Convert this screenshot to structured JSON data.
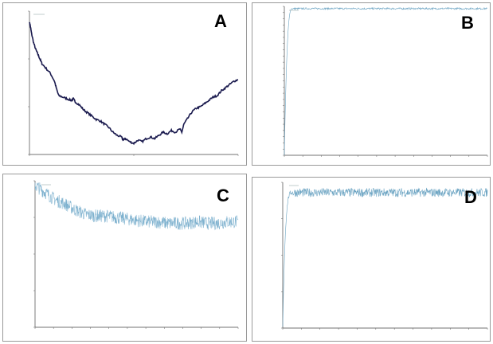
{
  "panels": [
    {
      "letter": "A"
    },
    {
      "letter": "B"
    },
    {
      "letter": "C"
    },
    {
      "letter": "D"
    }
  ],
  "chart_data": [
    {
      "type": "line",
      "title": "",
      "color": "#1a1a4e",
      "y_tick_labels": [
        "",
        "",
        ""
      ],
      "points": [
        [
          0,
          0.93
        ],
        [
          0.5,
          0.9
        ],
        [
          1,
          0.86
        ],
        [
          2,
          0.8
        ],
        [
          3,
          0.76
        ],
        [
          4,
          0.73
        ],
        [
          5,
          0.7
        ],
        [
          6,
          0.67
        ],
        [
          8,
          0.64
        ],
        [
          10,
          0.61
        ],
        [
          12,
          0.56
        ],
        [
          13,
          0.51
        ],
        [
          14,
          0.47
        ],
        [
          16,
          0.46
        ],
        [
          18,
          0.45
        ],
        [
          20,
          0.44
        ],
        [
          21,
          0.45
        ],
        [
          22,
          0.43
        ],
        [
          24,
          0.41
        ],
        [
          26,
          0.38
        ],
        [
          28,
          0.36
        ],
        [
          30,
          0.34
        ],
        [
          32,
          0.32
        ],
        [
          34,
          0.31
        ],
        [
          36,
          0.29
        ],
        [
          38,
          0.27
        ],
        [
          40,
          0.24
        ],
        [
          42,
          0.22
        ],
        [
          44,
          0.21
        ],
        [
          45,
          0.19
        ],
        [
          46,
          0.2
        ],
        [
          48,
          0.18
        ],
        [
          50,
          0.17
        ],
        [
          52,
          0.19
        ],
        [
          54,
          0.18
        ],
        [
          56,
          0.2
        ],
        [
          58,
          0.21
        ],
        [
          60,
          0.2
        ],
        [
          62,
          0.22
        ],
        [
          64,
          0.24
        ],
        [
          66,
          0.23
        ],
        [
          68,
          0.25
        ],
        [
          70,
          0.24
        ],
        [
          72,
          0.26
        ],
        [
          73,
          0.24
        ],
        [
          74,
          0.29
        ],
        [
          76,
          0.33
        ],
        [
          78,
          0.37
        ],
        [
          80,
          0.39
        ],
        [
          82,
          0.4
        ],
        [
          84,
          0.42
        ],
        [
          86,
          0.44
        ],
        [
          88,
          0.46
        ],
        [
          90,
          0.47
        ],
        [
          92,
          0.5
        ],
        [
          94,
          0.52
        ],
        [
          96,
          0.54
        ],
        [
          98,
          0.56
        ],
        [
          100,
          0.57
        ]
      ],
      "xlim": [
        0,
        100
      ],
      "ylim": [
        0.1,
        1.0
      ]
    },
    {
      "type": "line",
      "title": "",
      "color": "#6aa3c2",
      "ylim": [
        0,
        1
      ],
      "plateau": 0.985,
      "rise_end_x": 0.04
    },
    {
      "type": "line",
      "title": "",
      "color": "#7fb2cf",
      "ylim": [
        0,
        1
      ],
      "points": [
        [
          0,
          0.97
        ],
        [
          0.05,
          0.92
        ],
        [
          0.1,
          0.87
        ],
        [
          0.15,
          0.84
        ],
        [
          0.2,
          0.8
        ],
        [
          0.25,
          0.77
        ],
        [
          0.3,
          0.76
        ],
        [
          0.35,
          0.76
        ],
        [
          0.4,
          0.75
        ],
        [
          0.45,
          0.74
        ],
        [
          0.5,
          0.73
        ],
        [
          0.55,
          0.72
        ],
        [
          0.6,
          0.72
        ],
        [
          0.65,
          0.71
        ],
        [
          0.7,
          0.71
        ],
        [
          0.75,
          0.71
        ],
        [
          0.8,
          0.72
        ],
        [
          0.85,
          0.71
        ],
        [
          0.9,
          0.71
        ],
        [
          0.95,
          0.72
        ],
        [
          1.0,
          0.72
        ]
      ]
    },
    {
      "type": "line",
      "title": "",
      "color": "#6aa3c2",
      "ylim": [
        0,
        1
      ],
      "plateau": 0.93,
      "rise_end_x": 0.05
    }
  ]
}
